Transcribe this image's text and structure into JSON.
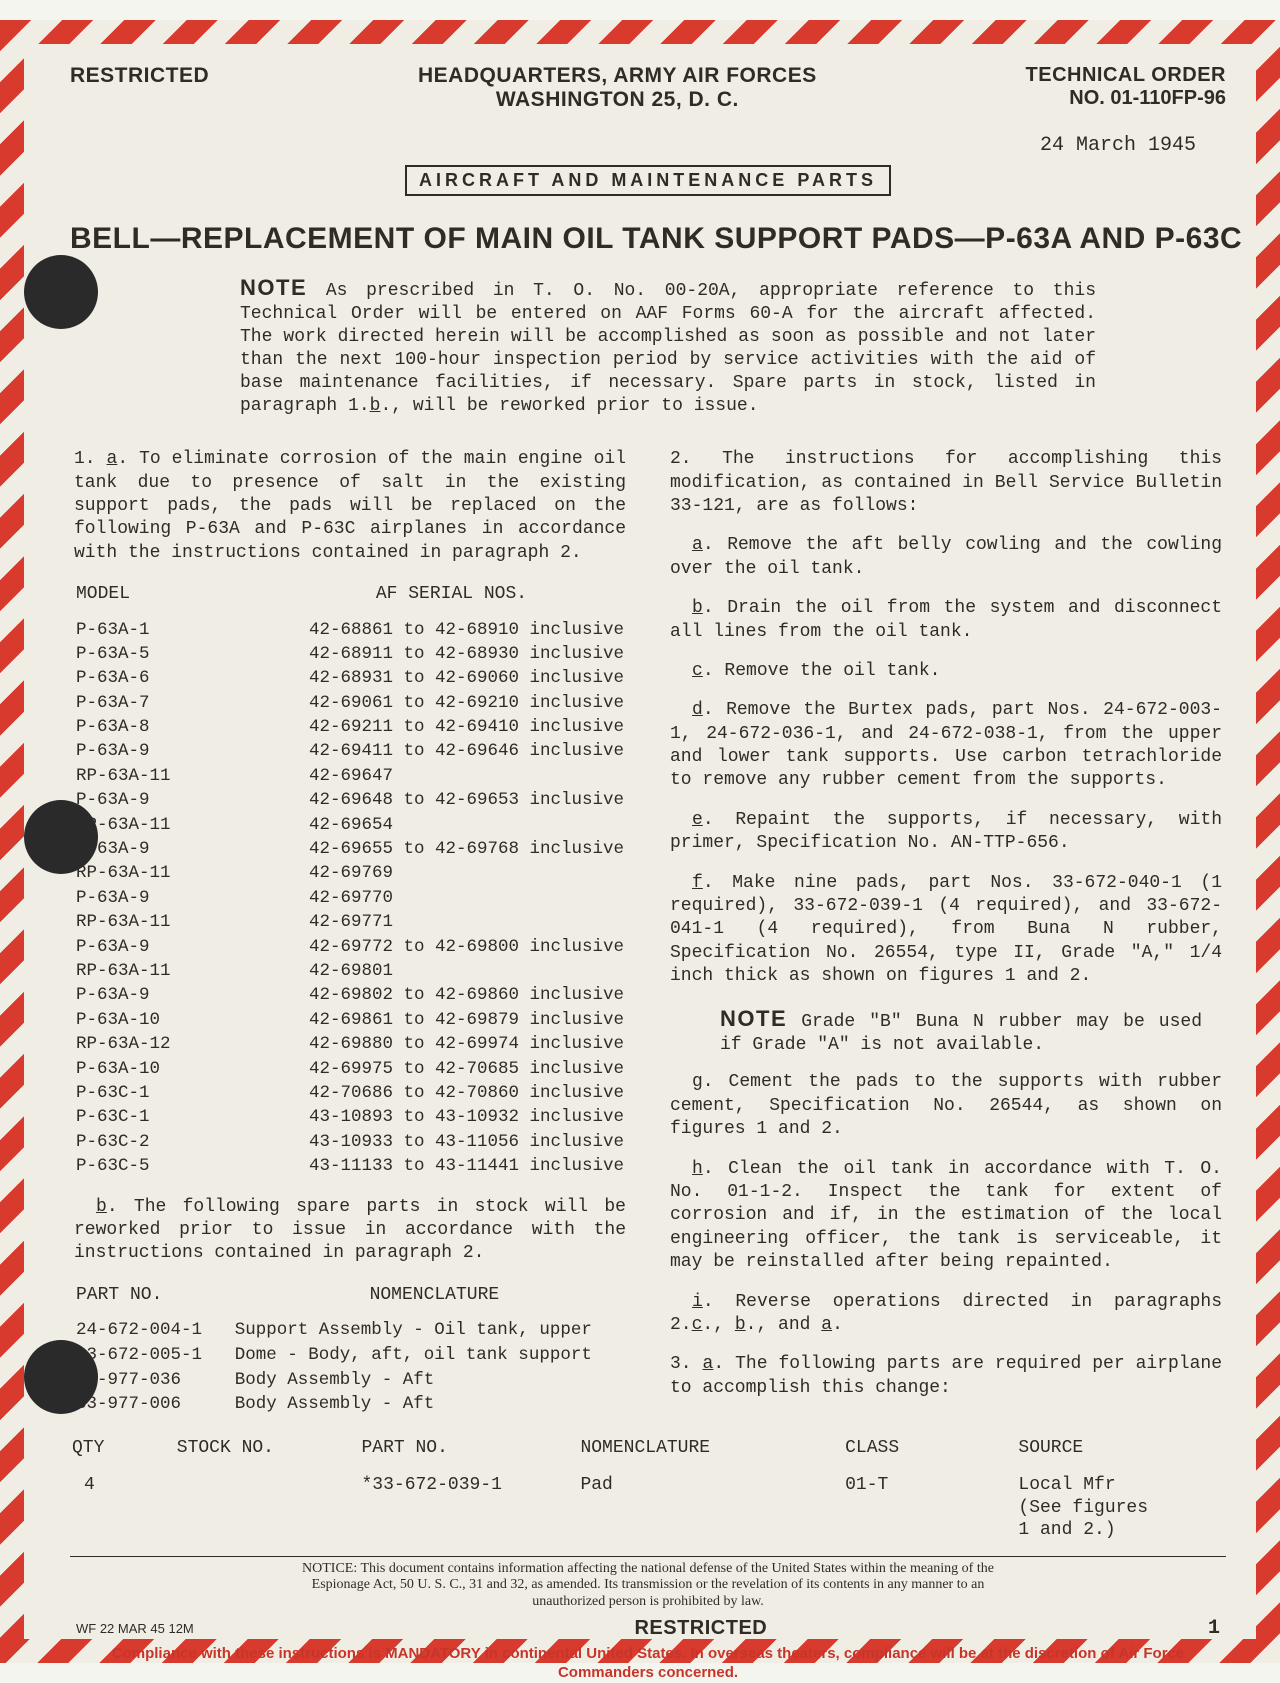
{
  "colors": {
    "paper": "#f0eee4",
    "ink": "#302b26",
    "stripe_red": "#d83a2e",
    "hole": "#2a2a2a",
    "compliance_red": "#c7352a"
  },
  "header": {
    "classification": "RESTRICTED",
    "hq_line1": "HEADQUARTERS, ARMY AIR FORCES",
    "hq_line2": "WASHINGTON 25, D. C.",
    "to_label": "TECHNICAL ORDER",
    "to_number": "NO. 01-110FP-96",
    "date": "24 March 1945",
    "category": "AIRCRAFT AND MAINTENANCE PARTS",
    "title": "BELL—REPLACEMENT OF MAIN OIL TANK SUPPORT PADS—P-63A AND P-63C"
  },
  "note": {
    "label": "NOTE",
    "text": "As prescribed in T. O. No. 00-20A, appropriate reference to this Technical Order will be entered on AAF Forms 60-A for the aircraft affected. The work directed herein will be accomplished as soon as possible and not later than the next 100-hour inspection period by service activities with the aid of base maintenance facilities, if necessary. Spare parts in stock, listed in paragraph 1.",
    "text_after": "., will be reworked prior to issue.",
    "b_ref": "b"
  },
  "para_1a": "To eliminate corrosion of the main engine oil tank due to presence of salt in the existing support pads, the pads will be replaced on the following P-63A and P-63C airplanes in accordance with the instructions contained in paragraph 2.",
  "model_table": {
    "head_model": "MODEL",
    "head_serial": "AF SERIAL NOS.",
    "rows": [
      {
        "m": "P-63A-1",
        "s": "42-68861 to 42-68910 inclusive"
      },
      {
        "m": "P-63A-5",
        "s": "42-68911 to 42-68930 inclusive"
      },
      {
        "m": "P-63A-6",
        "s": "42-68931 to 42-69060 inclusive"
      },
      {
        "m": "P-63A-7",
        "s": "42-69061 to 42-69210 inclusive"
      },
      {
        "m": "P-63A-8",
        "s": "42-69211 to 42-69410 inclusive"
      },
      {
        "m": "P-63A-9",
        "s": "42-69411 to 42-69646 inclusive"
      },
      {
        "m": "RP-63A-11",
        "s": "42-69647"
      },
      {
        "m": "P-63A-9",
        "s": "42-69648 to 42-69653 inclusive"
      },
      {
        "m": "RP-63A-11",
        "s": "42-69654"
      },
      {
        "m": "P-63A-9",
        "s": "42-69655 to 42-69768 inclusive"
      },
      {
        "m": "RP-63A-11",
        "s": "42-69769"
      },
      {
        "m": "P-63A-9",
        "s": "42-69770"
      },
      {
        "m": "RP-63A-11",
        "s": "42-69771"
      },
      {
        "m": "P-63A-9",
        "s": "42-69772 to 42-69800 inclusive"
      },
      {
        "m": "RP-63A-11",
        "s": "42-69801"
      },
      {
        "m": "P-63A-9",
        "s": "42-69802 to 42-69860 inclusive"
      },
      {
        "m": "P-63A-10",
        "s": "42-69861 to 42-69879 inclusive"
      },
      {
        "m": "RP-63A-12",
        "s": "42-69880 to 42-69974 inclusive"
      },
      {
        "m": "P-63A-10",
        "s": "42-69975 to 42-70685 inclusive"
      },
      {
        "m": "P-63C-1",
        "s": "42-70686 to 42-70860 inclusive"
      },
      {
        "m": "P-63C-1",
        "s": "43-10893 to 43-10932 inclusive"
      },
      {
        "m": "P-63C-2",
        "s": "43-10933 to 43-11056 inclusive"
      },
      {
        "m": "P-63C-5",
        "s": "43-11133 to 43-11441 inclusive"
      }
    ]
  },
  "para_1b": "The following spare parts in stock will be reworked prior to issue in accordance with the instructions contained in paragraph 2.",
  "parts_table": {
    "head_part": "PART NO.",
    "head_nom": "NOMENCLATURE",
    "rows": [
      {
        "p": "24-672-004-1",
        "n": "Support Assembly - Oil tank, upper"
      },
      {
        "p": "33-672-005-1",
        "n": "Dome - Body, aft, oil tank support"
      },
      {
        "p": "33-977-036",
        "n": "Body Assembly - Aft"
      },
      {
        "p": "33-977-006",
        "n": "Body Assembly - Aft"
      }
    ]
  },
  "para_2_intro": "2. The instructions for accomplishing this modification, as contained in Bell Service Bulletin 33-121, are as follows:",
  "para_2a": "Remove the aft belly cowling and the cowling over the oil tank.",
  "para_2b": "Drain the oil from the system and disconnect all lines from the oil tank.",
  "para_2c": "Remove the oil tank.",
  "para_2d": "Remove the Burtex pads, part Nos. 24-672-003-1, 24-672-036-1, and 24-672-038-1, from the upper and lower tank supports. Use carbon tetrachloride to remove any rubber cement from the supports.",
  "para_2e": "Repaint the supports, if necessary, with primer, Specification No. AN-TTP-656.",
  "para_2f": "Make nine pads, part Nos. 33-672-040-1 (1 required), 33-672-039-1 (4 required), and 33-672-041-1 (4 required), from Buna N rubber, Specification No. 26554, type II, Grade \"A,\" 1/4 inch thick as shown on figures 1 and 2.",
  "note2": {
    "label": "NOTE",
    "text": "Grade \"B\" Buna N rubber may be used if Grade \"A\" is not available."
  },
  "para_2g": "g. Cement the pads to the supports with rubber cement, Specification No. 26544, as shown on figures 1 and 2.",
  "para_2h": "Clean the oil tank in accordance with T. O. No. 01-1-2. Inspect the tank for extent of corrosion and if, in the estimation of the local engineering officer, the tank is serviceable, it may be reinstalled after being repainted.",
  "para_2i_pre": "Reverse operations directed in paragraphs 2.",
  "para_2i_refs": {
    "c": "c",
    "b": "b",
    "a": "a"
  },
  "para_3a": "The following parts are required per airplane to accomplish this change:",
  "wide_table": {
    "headers": {
      "qty": "QTY",
      "stock": "STOCK NO.",
      "part": "PART NO.",
      "nom": "NOMENCLATURE",
      "class": "CLASS",
      "src": "SOURCE"
    },
    "row": {
      "qty": "4",
      "stock": "",
      "part": "*33-672-039-1",
      "nom": "Pad",
      "class": "01-T",
      "src": "Local Mfr\n(See figures\n1 and 2.)"
    }
  },
  "footer": {
    "notice": "NOTICE: This document contains information affecting the national defense of the United States within the meaning of the Espionage Act, 50 U. S. C., 31 and 32, as amended. Its transmission or the revelation of its contents in any manner to an unauthorized person is prohibited by law.",
    "wf": "WF 22 MAR 45 12M",
    "classification": "RESTRICTED",
    "page": "1",
    "compliance": "Compliance with these instructions is MANDATORY in continental United States. In overseas theaters, compliance will be at the discretion of Air Force Commanders concerned."
  }
}
